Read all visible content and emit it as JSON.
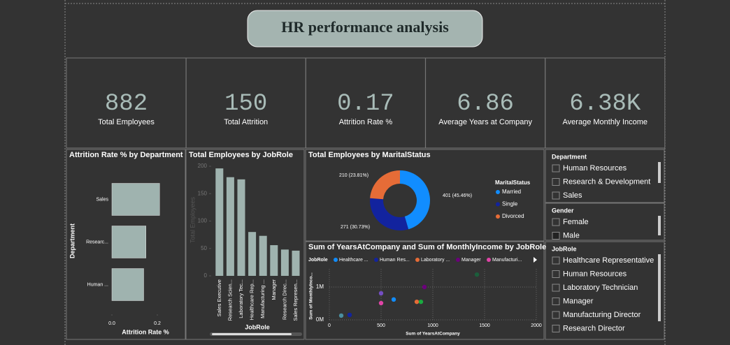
{
  "header": {
    "title": "HR performance analysis"
  },
  "kpis": [
    {
      "value": 882,
      "label": "Total Employees"
    },
    {
      "value": 150,
      "label": "Total Attrition"
    },
    {
      "value": 0.17,
      "label": "Attrition Rate %"
    },
    {
      "value": 6.86,
      "label": "Average Years at Company"
    },
    {
      "value": "6.38K",
      "label": "Average Monthly Income"
    }
  ],
  "chart_data": [
    {
      "type": "bar",
      "horizontal": true,
      "title": "Attrition Rate % by Department",
      "categories": [
        "Sales",
        "Researc...",
        "Human ..."
      ],
      "values": [
        0.21,
        0.15,
        0.14
      ],
      "color": "#9fb3af",
      "xlim": [
        0,
        0.24
      ],
      "xticks": [
        {
          "value": 0,
          "label": "0.0"
        },
        0.2
      ],
      "x_label": "Attrition Rate %",
      "y_label": "Department"
    },
    {
      "type": "bar",
      "title": "Total Employees by JobRole",
      "categories": [
        "Sales Executive",
        "Research Scien...",
        "Laboratory Tec...",
        "Healthcare Rep...",
        "Manufacturing ...",
        "Manager",
        "Research Direc...",
        "Sales Represen..."
      ],
      "values": [
        196,
        180,
        176,
        80,
        73,
        56,
        48,
        46
      ],
      "color": "#9fb3af",
      "ylim": [
        0,
        205
      ],
      "yticks": [
        0,
        50,
        100,
        150,
        200
      ],
      "x_label": "JobRole",
      "y_label": "Total Employees"
    },
    {
      "type": "pie",
      "title": "Total Employees by MaritalStatus",
      "legend_title": "MaritalStatus",
      "categories": [
        "Married",
        "Single",
        "Divorced"
      ],
      "values": [
        401,
        271,
        210
      ],
      "value_labels": [
        "401 (45.46%)",
        "271 (30.73%)",
        "210 (23.81%)"
      ],
      "colors": [
        "#118dff",
        "#12239e",
        "#e66c37"
      ]
    },
    {
      "type": "scatter",
      "title": "Sum of YearsAtCompany and Sum of MonthlyIncome by JobRole",
      "legend_title": "JobRole",
      "legend": [
        {
          "name": "Healthcare ...",
          "color": "#118dff"
        },
        {
          "name": "Human Res...",
          "color": "#12239e"
        },
        {
          "name": "Laboratory ...",
          "color": "#e66c37"
        },
        {
          "name": "Manager",
          "color": "#6b007b"
        },
        {
          "name": "Manufacturi...",
          "color": "#e044a7"
        }
      ],
      "x": [
        115,
        196,
        500,
        500,
        622,
        845,
        885,
        919,
        1426
      ],
      "values": [
        0.13,
        0.15,
        0.51,
        0.81,
        0.62,
        0.55,
        0.55,
        1.0,
        1.38
      ],
      "colors": [
        "#4a8fa0",
        "#12239e",
        "#e044a7",
        "#744ec2",
        "#118dff",
        "#e66c37",
        "#1aab40",
        "#6b007b",
        "#1b5e3b"
      ],
      "xlim": [
        0,
        2000
      ],
      "xticks": [
        0,
        500,
        1000,
        1500,
        2000
      ],
      "ylim": [
        0,
        1.55
      ],
      "yticks": [
        {
          "value": 0,
          "label": "0M"
        },
        {
          "value": 1,
          "label": "1M"
        }
      ],
      "x_label": "Sum of YearsAtCompany",
      "y_label": "Sum of MonthlyInco..."
    }
  ],
  "slicers": [
    {
      "title": "Department",
      "items": [
        "Human Resources",
        "Research & Development",
        "Sales"
      ]
    },
    {
      "title": "Gender",
      "items": [
        "Female",
        "Male"
      ]
    },
    {
      "title": "JobRole",
      "items": [
        "Healthcare Representative",
        "Human Resources",
        "Laboratory Technician",
        "Manager",
        "Manufacturing Director",
        "Research Director"
      ]
    }
  ]
}
